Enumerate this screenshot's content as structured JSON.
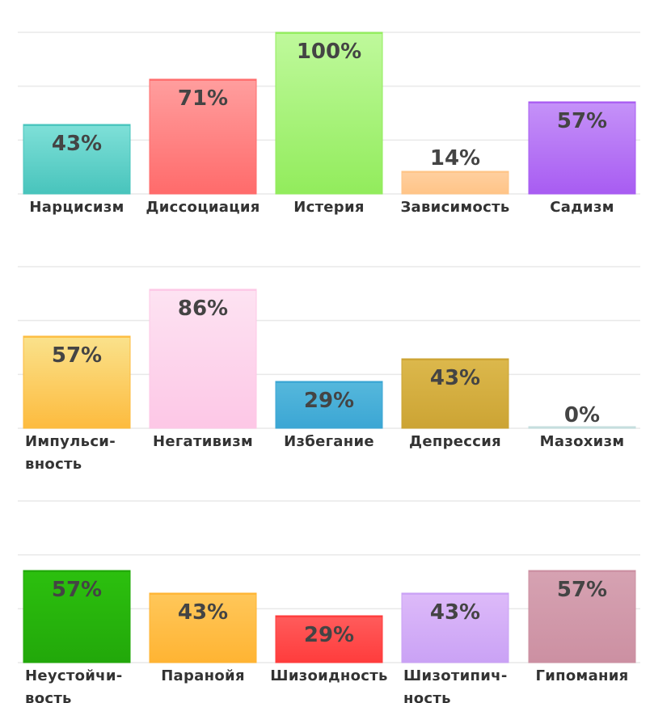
{
  "chart_data": [
    {
      "type": "bar",
      "ylim": [
        0,
        100
      ],
      "categories": [
        "Нарцисизм",
        "Диссоциация",
        "Истерия",
        "Зависимость",
        "Садизм"
      ],
      "values": [
        43,
        71,
        100,
        14,
        57
      ],
      "value_labels": [
        "43%",
        "71%",
        "100%",
        "14%",
        "57%"
      ],
      "colors": [
        [
          "#7fe0d8",
          "#48c4bc"
        ],
        [
          "#ff9e9e",
          "#ff6b6b"
        ],
        [
          "#bff99c",
          "#92ec5c"
        ],
        [
          "#ffd0a0",
          "#ffc487"
        ],
        [
          "#c592f8",
          "#a85cf2"
        ]
      ]
    },
    {
      "type": "bar",
      "ylim": [
        0,
        100
      ],
      "categories": [
        "Импульси-\nвность",
        "Негативизм",
        "Избегание",
        "Депрессия",
        "Мазохизм"
      ],
      "values": [
        57,
        86,
        29,
        43,
        0
      ],
      "value_labels": [
        "57%",
        "86%",
        "29%",
        "43%",
        "0%"
      ],
      "colors": [
        [
          "#fae28c",
          "#fdbb3e"
        ],
        [
          "#fde3f2",
          "#fdc7e6"
        ],
        [
          "#56b8dc",
          "#3ba6d4"
        ],
        [
          "#dcb84c",
          "#cca434"
        ],
        [
          "#d9ecec",
          "#c4dede"
        ]
      ]
    },
    {
      "type": "bar",
      "ylim": [
        0,
        100
      ],
      "categories": [
        "Неустойчи-\nвость",
        "Паранойя",
        "Шизоидность",
        "Шизотипич-\nность",
        "Гипомания"
      ],
      "values": [
        57,
        43,
        29,
        43,
        57
      ],
      "value_labels": [
        "57%",
        "43%",
        "29%",
        "43%",
        "57%"
      ],
      "colors": [
        [
          "#2cc00e",
          "#22a80a"
        ],
        [
          "#ffc75a",
          "#ffb433"
        ],
        [
          "#ff5c5c",
          "#ff3c3c"
        ],
        [
          "#ddbaf9",
          "#caa2f5"
        ],
        [
          "#d6a2b2",
          "#cc90a2"
        ]
      ]
    }
  ]
}
